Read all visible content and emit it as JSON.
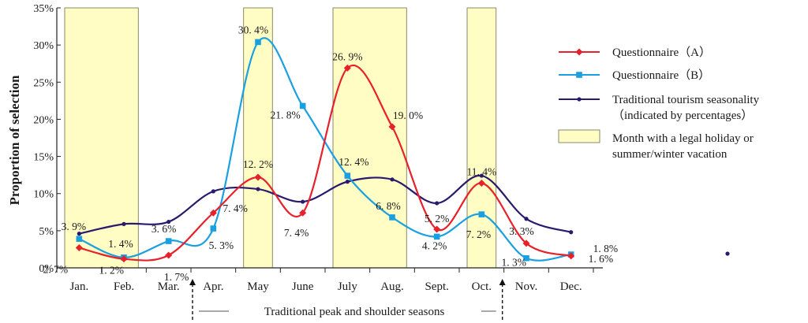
{
  "chart_data": {
    "type": "line",
    "ylabel": "Proportion of selection",
    "ylim": [
      0,
      35
    ],
    "yticks": [
      "0%",
      "5%",
      "10%",
      "15%",
      "20%",
      "25%",
      "30%",
      "35%"
    ],
    "categories": [
      "Jan.",
      "Feb.",
      "Mar.",
      "Apr.",
      "May",
      "June",
      "July",
      "Aug.",
      "Sept.",
      "Oct.",
      "Nov.",
      "Dec."
    ],
    "holiday_months": [
      {
        "from": "Jan.",
        "to": "Feb."
      },
      {
        "from": "May",
        "to": "May"
      },
      {
        "from": "July",
        "to": "Aug."
      },
      {
        "from": "Oct.",
        "to": "Oct."
      }
    ],
    "series": [
      {
        "name": "Questionnaire (A)",
        "color": "#e8202a",
        "marker": "diamond",
        "values": [
          2.7,
          1.2,
          1.7,
          7.4,
          12.2,
          7.4,
          26.9,
          19.0,
          5.2,
          11.4,
          3.3,
          1.6
        ],
        "labels": [
          "2. 7%",
          "1. 2%",
          "1. 7%",
          "7. 4%",
          "12. 2%",
          "7. 4%",
          "26. 9%",
          "19. 0%",
          "5. 2%",
          "11. 4%",
          "3. 3%",
          "1. 6%"
        ]
      },
      {
        "name": "Questionnaire (B)",
        "color": "#1aa0e0",
        "marker": "square",
        "values": [
          3.9,
          1.4,
          3.6,
          5.3,
          30.4,
          21.8,
          12.4,
          6.8,
          4.2,
          7.2,
          1.3,
          1.8
        ],
        "labels": [
          "3. 9%",
          "1. 4%",
          "3. 6%",
          "5. 3%",
          "30. 4%",
          "21. 8%",
          "12. 4%",
          "6. 8%",
          "4. 2%",
          "7. 2%",
          "1. 3%",
          "1. 8%"
        ]
      },
      {
        "name": "Traditional tourism seasonality (indicated by percentages)",
        "color": "#2a1a6e",
        "marker": "dot",
        "values": [
          4.6,
          5.9,
          6.2,
          10.3,
          10.6,
          8.9,
          11.6,
          11.9,
          8.7,
          12.4,
          6.6,
          4.8
        ],
        "labels": []
      }
    ],
    "legend": [
      {
        "key": "a",
        "text": "Questionnaire（A）"
      },
      {
        "key": "b",
        "text": "Questionnaire（B）"
      },
      {
        "key": "t",
        "text": "Traditional tourism seasonality"
      },
      {
        "key": "t2",
        "text": "（indicated by percentages）"
      },
      {
        "key": "h",
        "text": "Month with a legal holiday or"
      },
      {
        "key": "h2",
        "text": "summer/winter vacation"
      }
    ],
    "footer": "Traditional peak and shoulder seasons",
    "colors": {
      "holiday_fill": "#fffcc4",
      "holiday_stroke": "#8a8a6a"
    }
  }
}
